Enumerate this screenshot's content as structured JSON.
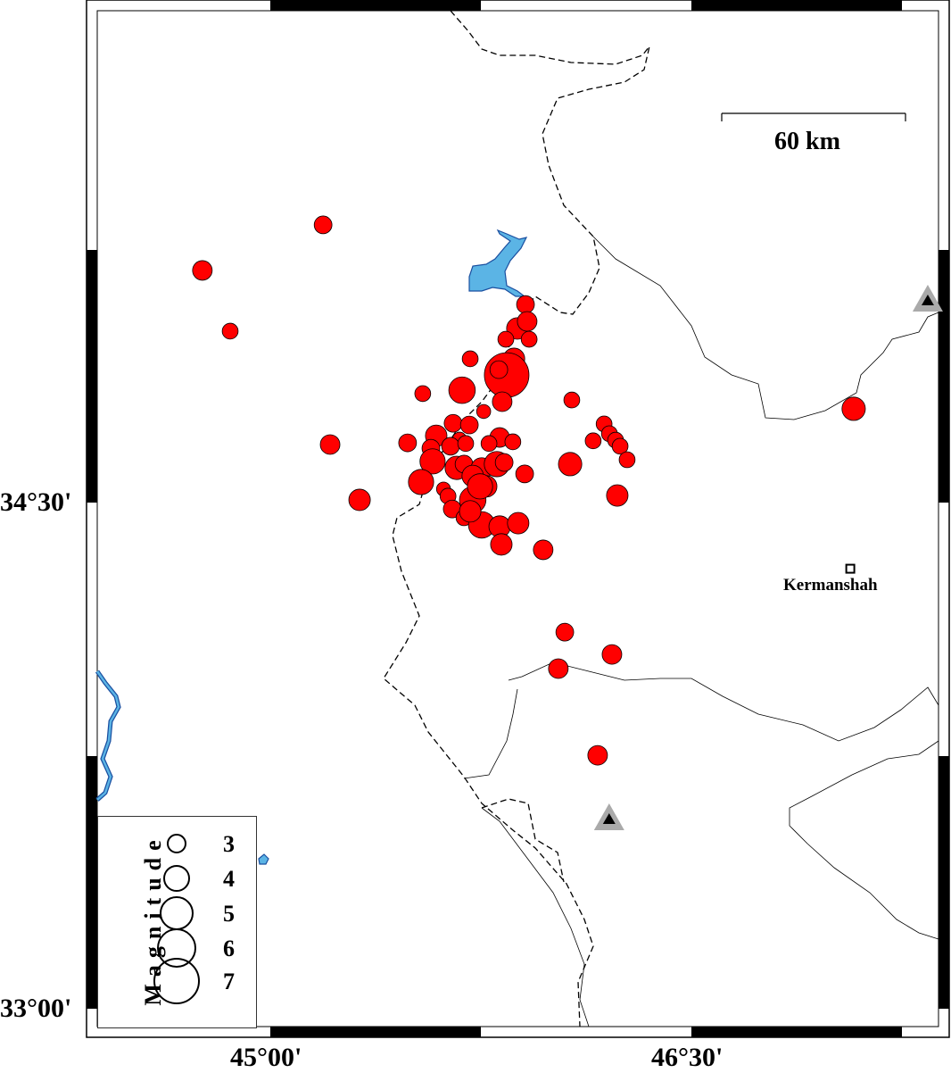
{
  "map": {
    "x_ticks": [
      {
        "lon": 45.0,
        "label": "45°00'"
      },
      {
        "lon": 46.5,
        "label": "46°30'"
      }
    ],
    "y_ticks": [
      {
        "lat": 34.5,
        "label": "34°30'"
      },
      {
        "lat": 33.0,
        "label": "33°00'"
      }
    ],
    "event_color": "#ff0000",
    "water_color": "#5bb4e5",
    "station_color": "#aaaaaa"
  },
  "scale_bar": {
    "label": "60 km"
  },
  "city": {
    "name": "Kermanshah",
    "lon": 47.066,
    "lat": 34.304
  },
  "legend": {
    "title": "Magnitude",
    "magnitudes": [
      "3",
      "4",
      "5",
      "6",
      "7"
    ]
  },
  "stations": [
    {
      "lon": 47.342,
      "lat": 35.098
    },
    {
      "lon": 46.207,
      "lat": 33.561
    }
  ],
  "events": [
    {
      "lon": 45.188,
      "lat": 35.323,
      "mag": 2.7
    },
    {
      "lon": 44.758,
      "lat": 35.188,
      "mag": 3.0
    },
    {
      "lon": 44.857,
      "lat": 35.008,
      "mag": 2.4
    },
    {
      "lon": 45.213,
      "lat": 34.672,
      "mag": 3.0
    },
    {
      "lon": 45.318,
      "lat": 34.508,
      "mag": 3.3
    },
    {
      "lon": 45.543,
      "lat": 34.823,
      "mag": 2.4
    },
    {
      "lon": 45.489,
      "lat": 34.677,
      "mag": 2.7
    },
    {
      "lon": 45.712,
      "lat": 34.926,
      "mag": 2.4
    },
    {
      "lon": 45.683,
      "lat": 34.833,
      "mag": 4.1
    },
    {
      "lon": 45.76,
      "lat": 34.77,
      "mag": 2.1
    },
    {
      "lon": 45.909,
      "lat": 35.087,
      "mag": 2.7
    },
    {
      "lon": 45.88,
      "lat": 35.016,
      "mag": 3.3
    },
    {
      "lon": 45.915,
      "lat": 35.037,
      "mag": 3.0
    },
    {
      "lon": 45.922,
      "lat": 34.984,
      "mag": 2.4
    },
    {
      "lon": 45.839,
      "lat": 34.984,
      "mag": 2.4
    },
    {
      "lon": 45.868,
      "lat": 34.926,
      "mag": 3.3
    },
    {
      "lon": 45.842,
      "lat": 34.878,
      "mag": 7.0
    },
    {
      "lon": 45.814,
      "lat": 34.894,
      "mag": 2.7
    },
    {
      "lon": 45.826,
      "lat": 34.799,
      "mag": 3.0
    },
    {
      "lon": 46.074,
      "lat": 34.804,
      "mag": 2.4
    },
    {
      "lon": 46.189,
      "lat": 34.733,
      "mag": 2.4
    },
    {
      "lon": 46.15,
      "lat": 34.683,
      "mag": 2.4
    },
    {
      "lon": 46.208,
      "lat": 34.704,
      "mag": 2.4
    },
    {
      "lon": 46.23,
      "lat": 34.685,
      "mag": 2.4
    },
    {
      "lon": 46.246,
      "lat": 34.667,
      "mag": 2.4
    },
    {
      "lon": 46.271,
      "lat": 34.627,
      "mag": 2.4
    },
    {
      "lon": 46.068,
      "lat": 34.614,
      "mag": 3.6
    },
    {
      "lon": 46.236,
      "lat": 34.521,
      "mag": 3.3
    },
    {
      "lon": 45.651,
      "lat": 34.735,
      "mag": 2.7
    },
    {
      "lon": 45.709,
      "lat": 34.73,
      "mag": 2.7
    },
    {
      "lon": 45.591,
      "lat": 34.698,
      "mag": 3.3
    },
    {
      "lon": 45.572,
      "lat": 34.661,
      "mag": 2.7
    },
    {
      "lon": 45.674,
      "lat": 34.688,
      "mag": 2.1
    },
    {
      "lon": 45.642,
      "lat": 34.667,
      "mag": 2.7
    },
    {
      "lon": 45.696,
      "lat": 34.675,
      "mag": 2.4
    },
    {
      "lon": 45.817,
      "lat": 34.693,
      "mag": 3.0
    },
    {
      "lon": 45.864,
      "lat": 34.68,
      "mag": 2.4
    },
    {
      "lon": 45.779,
      "lat": 34.675,
      "mag": 2.4
    },
    {
      "lon": 45.578,
      "lat": 34.622,
      "mag": 3.9
    },
    {
      "lon": 45.537,
      "lat": 34.561,
      "mag": 3.9
    },
    {
      "lon": 45.664,
      "lat": 34.603,
      "mag": 3.6
    },
    {
      "lon": 45.69,
      "lat": 34.614,
      "mag": 2.7
    },
    {
      "lon": 45.753,
      "lat": 34.601,
      "mag": 3.3
    },
    {
      "lon": 45.807,
      "lat": 34.614,
      "mag": 3.9
    },
    {
      "lon": 45.833,
      "lat": 34.619,
      "mag": 2.7
    },
    {
      "lon": 45.906,
      "lat": 34.585,
      "mag": 2.7
    },
    {
      "lon": 45.617,
      "lat": 34.54,
      "mag": 2.1
    },
    {
      "lon": 45.633,
      "lat": 34.519,
      "mag": 2.4
    },
    {
      "lon": 45.721,
      "lat": 34.579,
      "mag": 3.3
    },
    {
      "lon": 45.769,
      "lat": 34.548,
      "mag": 3.3
    },
    {
      "lon": 45.721,
      "lat": 34.508,
      "mag": 4.1
    },
    {
      "lon": 45.747,
      "lat": 34.548,
      "mag": 3.9
    },
    {
      "lon": 45.648,
      "lat": 34.481,
      "mag": 2.7
    },
    {
      "lon": 45.69,
      "lat": 34.455,
      "mag": 2.4
    },
    {
      "lon": 45.753,
      "lat": 34.434,
      "mag": 4.1
    },
    {
      "lon": 45.817,
      "lat": 34.429,
      "mag": 3.3
    },
    {
      "lon": 45.823,
      "lat": 34.376,
      "mag": 3.3
    },
    {
      "lon": 45.883,
      "lat": 34.439,
      "mag": 3.3
    },
    {
      "lon": 45.972,
      "lat": 34.36,
      "mag": 3.0
    },
    {
      "lon": 45.712,
      "lat": 34.474,
      "mag": 3.3
    },
    {
      "lon": 46.049,
      "lat": 34.116,
      "mag": 2.7
    },
    {
      "lon": 46.217,
      "lat": 34.05,
      "mag": 3.0
    },
    {
      "lon": 46.026,
      "lat": 34.008,
      "mag": 3.0
    },
    {
      "lon": 46.166,
      "lat": 33.751,
      "mag": 3.0
    },
    {
      "lon": 47.078,
      "lat": 34.778,
      "mag": 3.6
    }
  ]
}
